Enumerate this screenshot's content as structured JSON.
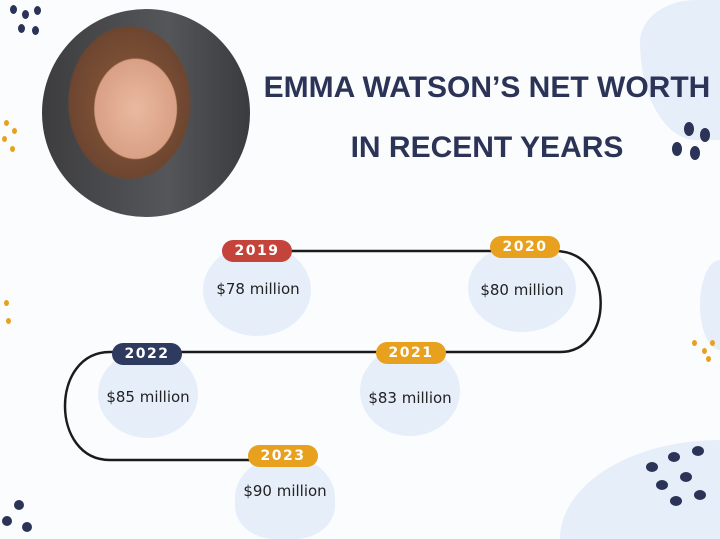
{
  "title": "Emma Watson’s Net Worth in Recent Years",
  "photo_alt": "Portrait of Emma Watson",
  "colors": {
    "title": "#2b3357",
    "red": "#c4433a",
    "orange": "#e8a11f",
    "navy": "#2e3a5e",
    "blob": "#e6eef9"
  },
  "timeline": [
    {
      "year": "2019",
      "value": "$78 million",
      "color": "#c4433a"
    },
    {
      "year": "2020",
      "value": "$80 million",
      "color": "#e8a11f"
    },
    {
      "year": "2021",
      "value": "$83 million",
      "color": "#e8a11f"
    },
    {
      "year": "2022",
      "value": "$85 million",
      "color": "#2e3a5e"
    },
    {
      "year": "2023",
      "value": "$90 million",
      "color": "#e8a11f"
    }
  ]
}
